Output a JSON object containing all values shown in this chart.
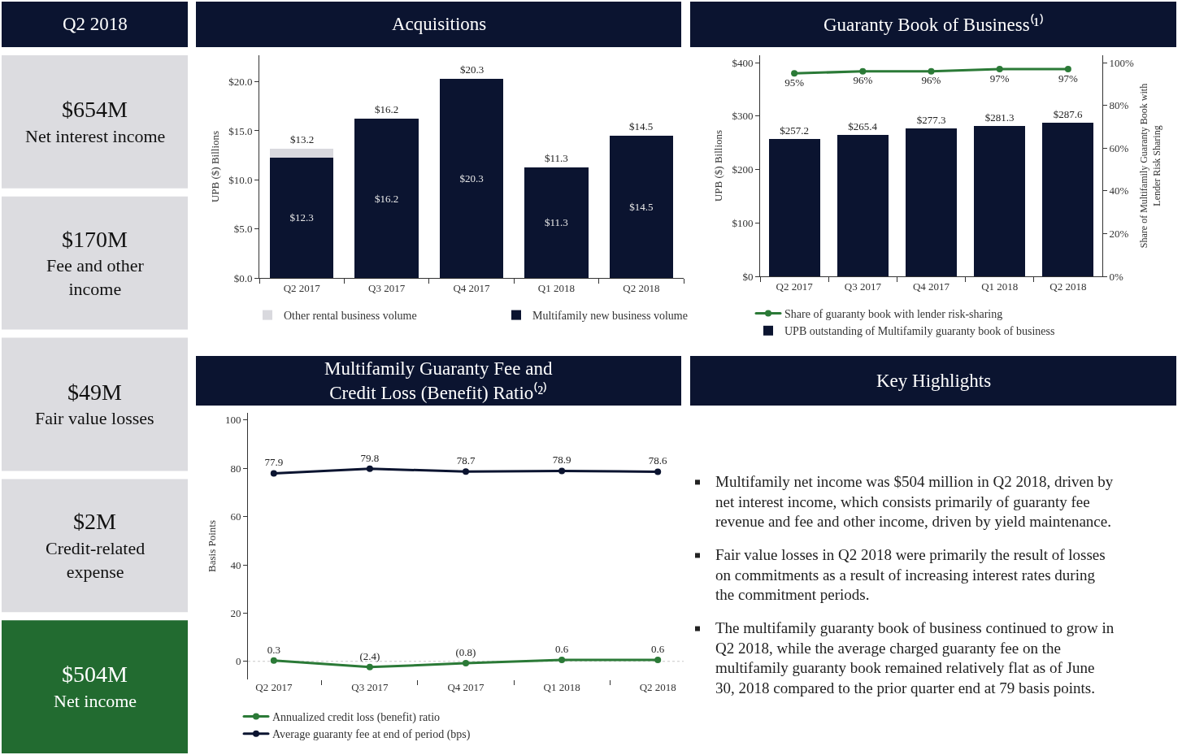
{
  "chart_data": [
    {
      "type": "other",
      "title": "Q2 2018",
      "annotations": [
        "$654M\nNet interest income",
        "$170M\nFee and other income",
        "$49M\nFair value losses",
        "$2M\nCredit-related expense",
        "$504M\nNet income"
      ]
    },
    {
      "type": "bar",
      "title": "Acquisitions",
      "categories": [
        "Q2 2017",
        "Q3 2017",
        "Q4 2017",
        "Q1 2018",
        "Q2 2018"
      ],
      "stacked": true,
      "series": [
        {
          "name": "Multifamily new business volume",
          "color": "#0b1430",
          "values": [
            12.3,
            16.2,
            20.3,
            11.3,
            14.5
          ],
          "value_labels": [
            "$12.3",
            "$16.2",
            "$20.3",
            "$11.3",
            "$14.5"
          ]
        },
        {
          "name": "Other rental business volume",
          "color": "#d9d9de",
          "values": [
            0.9,
            null,
            null,
            null,
            null
          ]
        }
      ],
      "totals": [
        "$13.2",
        "$16.2",
        "$20.3",
        "$11.3",
        "$14.5"
      ],
      "ylabel": "UPB ($) Billions",
      "ylim": [
        0,
        22.7
      ],
      "yticks": [
        {
          "value": 0,
          "label": "$0.0"
        },
        {
          "value": 5,
          "label": "$5.0"
        },
        {
          "value": 10,
          "label": "$10.0"
        },
        {
          "value": 15,
          "label": "$15.0"
        },
        {
          "value": 20,
          "label": "$20.0"
        }
      ],
      "legend": "bottom"
    },
    {
      "type": "bar",
      "title": "Guaranty Book of Business⁽¹⁾",
      "categories": [
        "Q2 2017",
        "Q3 2017",
        "Q4 2017",
        "Q1 2018",
        "Q2 2018"
      ],
      "series": [
        {
          "name": "Share of guaranty book with lender risk-sharing",
          "type": "line",
          "axis": "y2",
          "color": "#2b7a37",
          "values": [
            95,
            96,
            96,
            97,
            97
          ],
          "value_labels": [
            "95%",
            "96%",
            "96%",
            "97%",
            "97%"
          ]
        },
        {
          "name": "UPB outstanding of Multifamily guaranty book of business",
          "color": "#0b1430",
          "values": [
            257.2,
            265.4,
            277.3,
            281.3,
            287.6
          ],
          "value_labels": [
            "$257.2",
            "$265.4",
            "$277.3",
            "$281.3",
            "$287.6"
          ]
        }
      ],
      "ylabel": "UPB ($) Billions",
      "y2label": "Share of Multifamily Guaranty Book with Lender Risk Sharing",
      "ylim": [
        0,
        414
      ],
      "yticks": [
        {
          "value": 0,
          "label": "$0"
        },
        {
          "value": 100,
          "label": "$100"
        },
        {
          "value": 200,
          "label": "$200"
        },
        {
          "value": 300,
          "label": "$300"
        },
        {
          "value": 400,
          "label": "$400"
        }
      ],
      "y2lim": [
        0,
        103.5
      ],
      "y2ticks": [
        {
          "value": 0,
          "label": "0%"
        },
        {
          "value": 20,
          "label": "20%"
        },
        {
          "value": 40,
          "label": "40%"
        },
        {
          "value": 60,
          "label": "60%"
        },
        {
          "value": 80,
          "label": "80%"
        },
        {
          "value": 100,
          "label": "100%"
        }
      ],
      "marker": "circle",
      "legend": "bottom"
    },
    {
      "type": "line",
      "title": "Multifamily Guaranty Fee and Credit Loss (Benefit) Ratio⁽²⁾",
      "categories": [
        "Q2 2017",
        "Q3 2017",
        "Q4 2017",
        "Q1 2018",
        "Q2 2018"
      ],
      "series": [
        {
          "name": "Annualized credit loss (benefit) ratio",
          "color": "#2b7a37",
          "values": [
            0.3,
            -2.4,
            -0.8,
            0.6,
            0.6
          ],
          "value_labels": [
            "0.3",
            "(2.4)",
            "(0.8)",
            "0.6",
            "0.6"
          ]
        },
        {
          "name": "Average guaranty fee at end of period (bps)",
          "color": "#0b1430",
          "values": [
            77.9,
            79.8,
            78.7,
            78.9,
            78.6
          ],
          "value_labels": [
            "77.9",
            "79.8",
            "78.7",
            "78.9",
            "78.6"
          ]
        }
      ],
      "ylabel": "Basis Points",
      "ylim": [
        -7.5,
        103
      ],
      "yticks": [
        0,
        20,
        40,
        60,
        80,
        100
      ],
      "ref_lines": [
        {
          "axis": "y",
          "value": 0,
          "line_style": "dotted",
          "color": "#c8c8c8"
        }
      ],
      "marker": "circle",
      "legend": "bottom"
    },
    {
      "type": "other",
      "title": "Key Highlights",
      "annotations": [
        "Multifamily net income was $504 million in Q2 2018, driven by net interest income, which consists primarily of guaranty fee revenue and fee and other income, driven by yield maintenance.",
        "Fair value losses in Q2 2018 were primarily the result of losses on commitments as a result of increasing interest rates during the commitment periods.",
        "The multifamily guaranty book of business continued to grow in Q2 2018, while the average charged guaranty fee on the multifamily guaranty book remained relatively flat as of June 30, 2018 compared to the prior quarter end at 79 basis points."
      ]
    }
  ]
}
